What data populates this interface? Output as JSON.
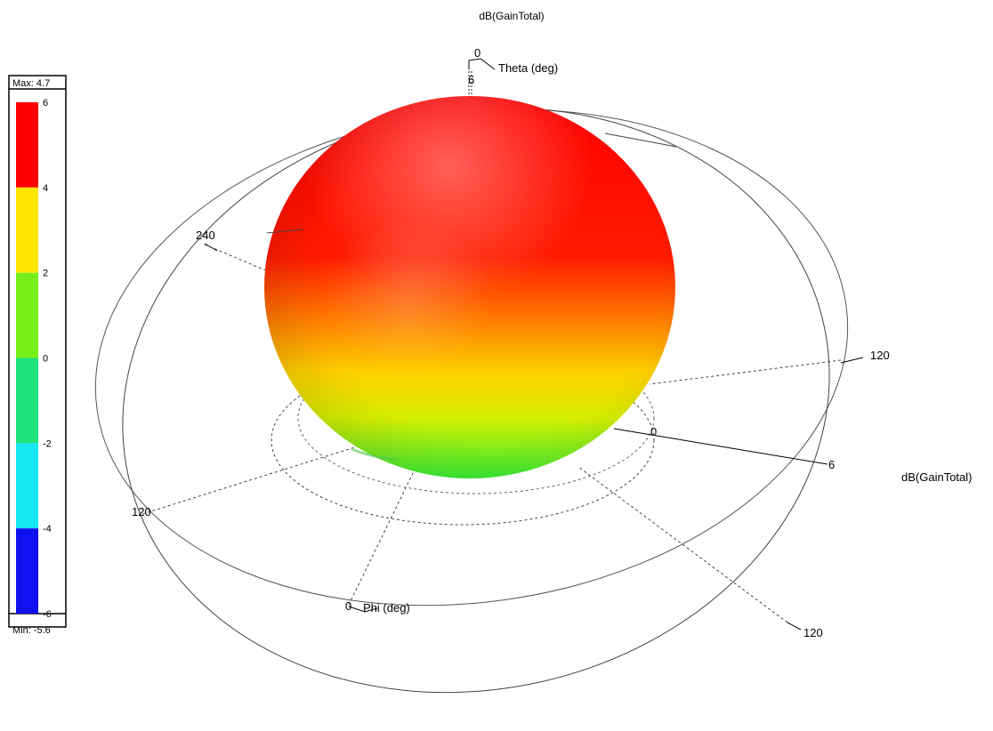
{
  "chart_data": {
    "type": "3d-radiation-pattern",
    "title": "dB(GainTotal)",
    "quantity_label": "dB(GainTotal)",
    "units": "dB",
    "max_label": "Max: 4.7",
    "min_label": "Min: -5.6",
    "max": 4.7,
    "min": -5.6,
    "legend": {
      "placement": "left",
      "bands": [
        {
          "from": 4,
          "to": 6,
          "color": "#ff0000"
        },
        {
          "from": 2,
          "to": 4,
          "color": "#ffe600"
        },
        {
          "from": 0,
          "to": 2,
          "color": "#77ee1a"
        },
        {
          "from": -2,
          "to": 0,
          "color": "#1ee37a"
        },
        {
          "from": -4,
          "to": -2,
          "color": "#17e7ee"
        },
        {
          "from": -6,
          "to": -4,
          "color": "#1010f0"
        }
      ],
      "tick_labels": [
        "6",
        "4",
        "2",
        "0",
        "-2",
        "-4",
        "-6"
      ]
    },
    "theta_axis_label": "Theta (deg)",
    "phi_axis_label": "Phi (deg)",
    "axis_tick_labels": {
      "theta_top_zero": "0",
      "theta_top_six": "6",
      "phi_origin": "0",
      "left_240": "240",
      "left_120": "120",
      "right_120": "120",
      "bottom_right_120": "120",
      "radial_zero": "0",
      "radial_six": "6"
    }
  }
}
